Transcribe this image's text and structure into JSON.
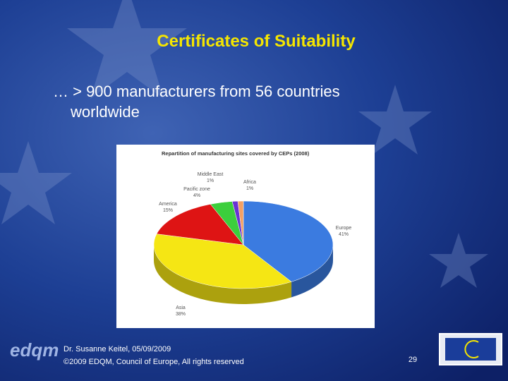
{
  "slide": {
    "title": "Certificates of Suitability",
    "body_lines": [
      "… > 900 manufacturers from 56 countries",
      "worldwide"
    ],
    "footer_lines": [
      "Dr. Susanne Keitel, 05/09/2009",
      "©2009 EDQM, Council of Europe, All rights reserved"
    ],
    "page_number": "29",
    "logo": "edqm"
  },
  "chart_data": {
    "type": "pie",
    "title": "Repartition of manufacturing sites covered by CEPs (2008)",
    "categories": [
      "Europe",
      "Asia",
      "America",
      "Pacific zone",
      "Middle East",
      "Africa"
    ],
    "values": [
      41,
      38,
      15,
      4,
      1,
      1
    ],
    "value_labels": [
      "41%",
      "38%",
      "15%",
      "4%",
      "1%",
      "1%"
    ],
    "colors": [
      "#3b7be0",
      "#f5e614",
      "#de1414",
      "#3ccf3c",
      "#6a32d2",
      "#f4a064"
    ]
  }
}
